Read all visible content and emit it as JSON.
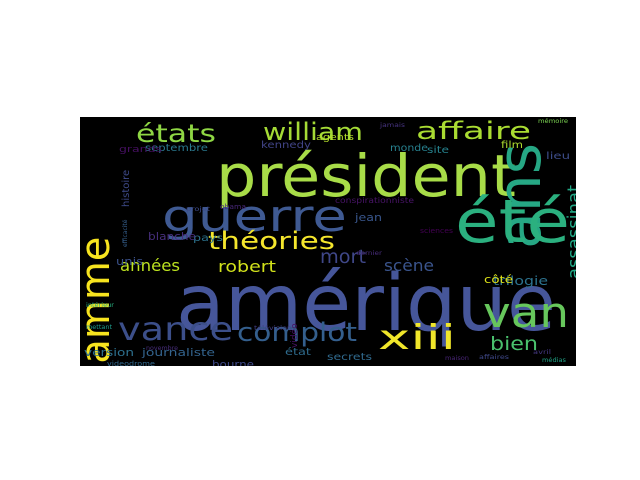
{
  "word_cloud": {
    "background": "#000000",
    "words": [
      {
        "text": "amérique",
        "color": "#46569a"
      },
      {
        "text": "président",
        "color": "#a8dc48"
      },
      {
        "text": "ans",
        "color": "#26a784"
      },
      {
        "text": "été",
        "color": "#2bb07f"
      },
      {
        "text": "guerre",
        "color": "#3f5a93"
      },
      {
        "text": "hamme",
        "color": "#f7e41f"
      },
      {
        "text": "van",
        "color": "#67c75c"
      },
      {
        "text": "vance",
        "color": "#3c4f8a"
      },
      {
        "text": "xiii",
        "color": "#f0e62a"
      },
      {
        "text": "complot",
        "color": "#345f8d"
      },
      {
        "text": "théories",
        "color": "#f5e62d"
      },
      {
        "text": "affaire",
        "color": "#aadc32"
      },
      {
        "text": "william",
        "color": "#a5db36"
      },
      {
        "text": "états",
        "color": "#8fd744"
      },
      {
        "text": "assassinat",
        "color": "#22a785"
      },
      {
        "text": "mort",
        "color": "#3f4788"
      },
      {
        "text": "bien",
        "color": "#4ac16d"
      },
      {
        "text": "robert",
        "color": "#d2e21b"
      },
      {
        "text": "années",
        "color": "#bde320"
      },
      {
        "text": "scène",
        "color": "#3a548c"
      },
      {
        "text": "trilogie",
        "color": "#2c728e"
      },
      {
        "text": "journaliste",
        "color": "#33638d"
      },
      {
        "text": "version",
        "color": "#2d708e"
      },
      {
        "text": "bourne",
        "color": "#3e4989"
      },
      {
        "text": "état",
        "color": "#2f6c8e"
      },
      {
        "text": "secrets",
        "color": "#306a8e"
      },
      {
        "text": "kennedy",
        "color": "#414487"
      },
      {
        "text": "septembre",
        "color": "#2a788e"
      },
      {
        "text": "agents",
        "color": "#b5de2b"
      },
      {
        "text": "monde",
        "color": "#27808e"
      },
      {
        "text": "site",
        "color": "#26828e"
      },
      {
        "text": "film",
        "color": "#addc30"
      },
      {
        "text": "lieu",
        "color": "#3d4d8a"
      },
      {
        "text": "côté",
        "color": "#dfe318"
      },
      {
        "text": "jean",
        "color": "#39568c"
      },
      {
        "text": "unis",
        "color": "#3b528b"
      },
      {
        "text": "pays",
        "color": "#2c738e"
      },
      {
        "text": "blanche",
        "color": "#472f7d"
      },
      {
        "text": "histoire",
        "color": "#3e4a89"
      },
      {
        "text": "grands",
        "color": "#471063"
      },
      {
        "text": "vidéo",
        "color": "#471365"
      },
      {
        "text": "sciences",
        "color": "#440154"
      },
      {
        "text": "conspirationniste",
        "color": "#481467"
      },
      {
        "text": "videodrome",
        "color": "#31688e"
      },
      {
        "text": "projet",
        "color": "#3e4c8a"
      },
      {
        "text": "obama",
        "color": "#482878"
      },
      {
        "text": "dernier",
        "color": "#472c7a"
      },
      {
        "text": "mettant",
        "color": "#1e9b8a"
      },
      {
        "text": "intérieur",
        "color": "#29af7f"
      },
      {
        "text": "maison",
        "color": "#482576"
      },
      {
        "text": "affaires",
        "color": "#3f4889"
      },
      {
        "text": "avril",
        "color": "#453882"
      },
      {
        "text": "mémoire",
        "color": "#7ad151"
      },
      {
        "text": "novembre",
        "color": "#472d7b"
      },
      {
        "text": "télévision",
        "color": "#433e85"
      },
      {
        "text": "médias",
        "color": "#20a386"
      },
      {
        "text": "jamais",
        "color": "#46337f"
      },
      {
        "text": "efficacité",
        "color": "#355f8d"
      }
    ]
  }
}
